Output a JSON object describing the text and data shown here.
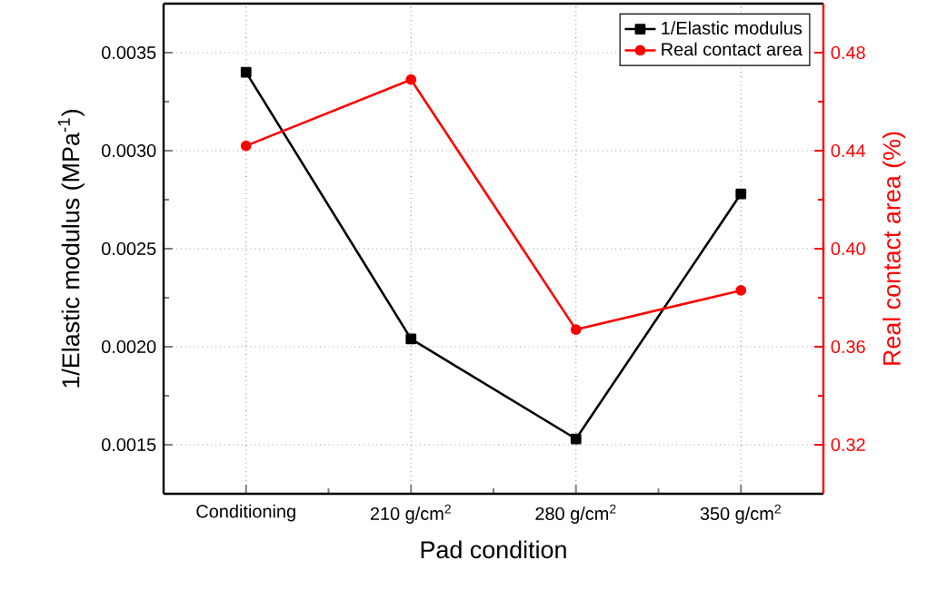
{
  "chart_data": {
    "type": "line",
    "xlabel": "Pad condition",
    "ylabel": "1/Elastic modulus (MPa$^{-1}$)",
    "y2label": "Real contact area (%)",
    "categories": [
      "Conditioning",
      "210 g/cm$^{2}$",
      "280 g/cm$^{2}$",
      "350 g/cm$^{2}$"
    ],
    "series": [
      {
        "name": "1/Elastic modulus",
        "color": "#000000",
        "marker": "square",
        "values": [
          0.0034,
          0.00204,
          0.00153,
          0.00278
        ]
      },
      {
        "name": "Real contact area",
        "color": "#ff0000",
        "marker": "circle",
        "axis": "y2",
        "values": [
          0.442,
          0.469,
          0.367,
          0.383
        ]
      }
    ],
    "ylim": [
      0.00125,
      0.00375
    ],
    "yticks": [
      {
        "value": 0.0015,
        "label": "0.0015"
      },
      {
        "value": 0.002,
        "label": "0.0020"
      },
      {
        "value": 0.0025,
        "label": "0.0025"
      },
      {
        "value": 0.003,
        "label": "0.0030"
      },
      {
        "value": 0.0035,
        "label": "0.0035"
      }
    ],
    "y2lim": [
      0.3,
      0.5
    ],
    "y2ticks": [
      {
        "value": 0.32,
        "label": "0.32"
      },
      {
        "value": 0.36,
        "label": "0.36"
      },
      {
        "value": 0.4,
        "label": "0.40"
      },
      {
        "value": 0.44,
        "label": "0.44"
      },
      {
        "value": 0.48,
        "label": "0.48"
      }
    ],
    "grid": true,
    "legend": "top right"
  }
}
